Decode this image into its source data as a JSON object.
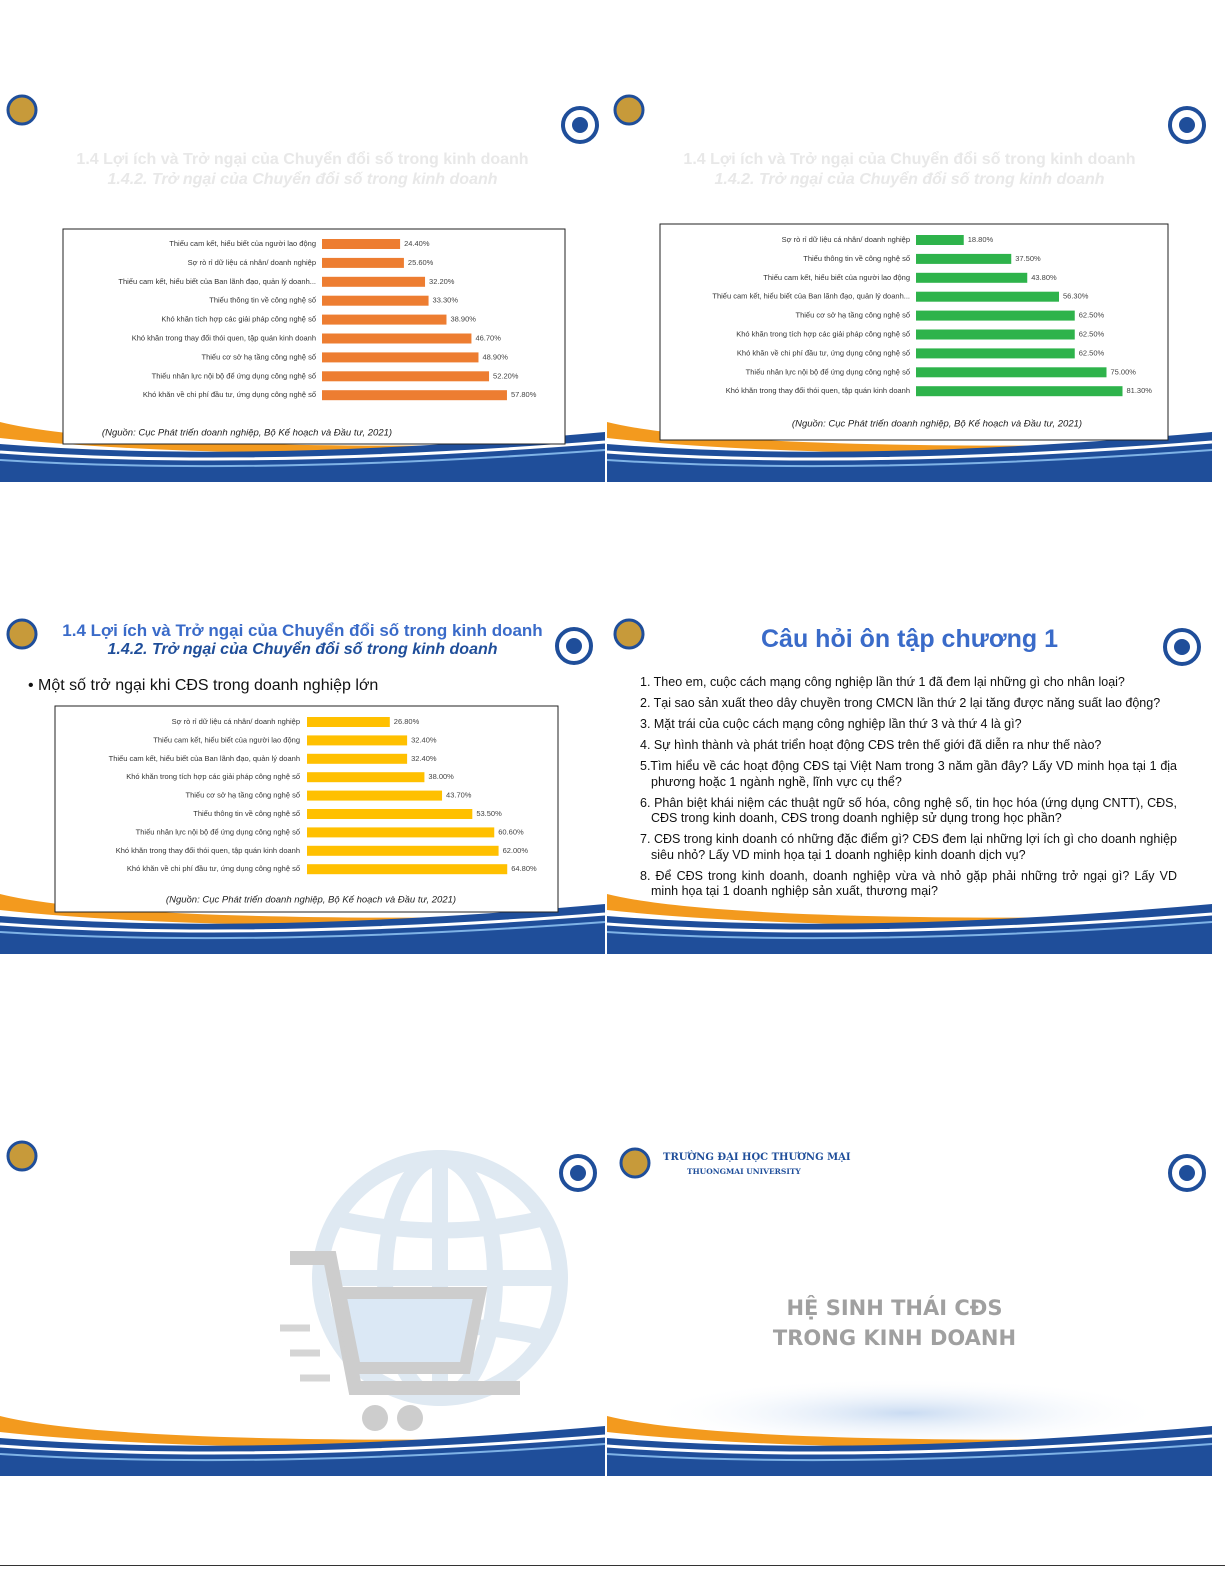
{
  "slides": [
    {
      "title": "1.4 Lợi ích và Trở ngại của Chuyển đổi số trong kinh doanh",
      "subtitle": "1.4.2. Trở ngại của Chuyển đổi số trong kinh doanh",
      "chart": {
        "type": "bar",
        "color": "#ed7d31",
        "categories": [
          "Thiếu cam kết, hiểu biết của người lao động",
          "Sợ rò rỉ dữ liệu cá nhân/ doanh nghiệp",
          "Thiếu cam kết, hiểu biết của Ban lãnh đạo, quản lý doanh...",
          "Thiếu thông tin về công nghệ số",
          "Khó khăn tích hợp các giải pháp công nghệ số",
          "Khó khăn trong thay đổi thói quen, tập quán kinh doanh",
          "Thiếu cơ sở hạ tầng công nghệ số",
          "Thiếu nhân lực nội bộ để ứng dụng công nghệ số",
          "Khó khăn về chi phí đầu tư, ứng dụng công nghệ số"
        ],
        "values": [
          24.4,
          25.6,
          32.2,
          33.3,
          38.9,
          46.7,
          48.9,
          52.2,
          57.8
        ],
        "value_labels": [
          "24.40%",
          "25.60%",
          "32.20%",
          "33.30%",
          "38.90%",
          "46.70%",
          "48.90%",
          "52.20%",
          "57.80%"
        ],
        "source": "(Nguồn: Cục Phát triển doanh nghiệp, Bộ Kế hoạch và Đầu tư, 2021)"
      }
    },
    {
      "title": "1.4 Lợi ích và Trở ngại của Chuyển đổi số trong kinh doanh",
      "subtitle": "1.4.2. Trở ngại của Chuyển đổi số trong kinh doanh",
      "chart": {
        "type": "bar",
        "color": "#2eb34b",
        "categories": [
          "Sợ rò rỉ dữ liệu cá nhân/ doanh nghiệp",
          "Thiếu thông tin về công nghệ số",
          "Thiếu cam kết, hiểu biết của người lao động",
          "Thiếu cam kết, hiểu biết của Ban lãnh đạo, quản lý doanh...",
          "Thiếu cơ sở hạ tầng công nghệ số",
          "Khó khăn trong tích hợp các giải pháp công nghệ số",
          "Khó khăn về chi phí đầu tư, ứng dụng công nghệ số",
          "Thiếu nhân lực nội bộ để ứng dụng công nghệ số",
          "Khó khăn trong thay đổi thói quen, tập quán kinh doanh"
        ],
        "values": [
          18.8,
          37.5,
          43.8,
          56.3,
          62.5,
          62.5,
          62.5,
          75.0,
          81.3
        ],
        "value_labels": [
          "18.80%",
          "37.50%",
          "43.80%",
          "56.30%",
          "62.50%",
          "62.50%",
          "62.50%",
          "75.00%",
          "81.30%"
        ],
        "source": "(Nguồn: Cục Phát triển doanh nghiệp, Bộ Kế hoạch và Đầu tư, 2021)"
      }
    },
    {
      "title": "1.4 Lợi ích và Trở ngại của Chuyển đổi số trong kinh doanh",
      "subtitle": "1.4.2. Trở ngại của Chuyển đổi số trong kinh doanh",
      "bullet": "Một số trở ngại khi CĐS trong doanh nghiệp lớn",
      "chart": {
        "type": "bar",
        "color": "#ffc000",
        "categories": [
          "Sợ rò rỉ dữ liệu cá nhân/ doanh nghiệp",
          "Thiếu cam kết, hiểu biết của người lao động",
          "Thiếu cam kết, hiểu biết của Ban lãnh đạo, quản lý doanh",
          "Khó khăn trong tích hợp các giải pháp công nghệ số",
          "Thiếu cơ sở hạ tầng công nghệ số",
          "Thiếu thông tin về công nghệ số",
          "Thiếu nhân lực nội bộ để ứng dụng công nghệ số",
          "Khó khăn trong thay đổi thói quen, tập quán kinh doanh",
          "Khó khăn về chi phí đầu tư, ứng dụng công nghệ số"
        ],
        "values": [
          26.8,
          32.4,
          32.4,
          38.0,
          43.7,
          53.5,
          60.6,
          62.0,
          64.8
        ],
        "value_labels": [
          "26.80%",
          "32.40%",
          "32.40%",
          "38.00%",
          "43.70%",
          "53.50%",
          "60.60%",
          "62.00%",
          "64.80%"
        ],
        "source": "(Nguồn: Cục Phát triển doanh nghiệp, Bộ Kế hoạch và Đầu tư, 2021)"
      }
    },
    {
      "title": "Câu hỏi ôn tập chương 1",
      "questions": [
        "1. Theo em, cuộc cách mạng công nghiệp lần thứ 1 đã đem lại những gì cho nhân loại?",
        "2. Tại sao sản xuất theo dây chuyền trong CMCN lần thứ 2 lại tăng được năng suất lao động?",
        "3. Mặt trái của cuộc cách mạng công nghiệp lần thứ 3 và thứ 4 là gì?",
        "4. Sự hình thành và phát triển hoạt động CĐS trên thế giới đã diễn ra như thế nào?",
        "5.Tìm hiểu về các hoạt động CĐS tại Việt Nam trong 3 năm gần đây? Lấy VD minh họa tại 1 địa phương hoặc 1 ngành nghề, lĩnh vực cụ thể?",
        "6. Phân biệt khái niệm các thuật ngữ số hóa, công nghệ số, tin học hóa (ứng dụng CNTT), CĐS, CĐS trong kinh doanh, CĐS trong doanh nghiệp sử dụng trong học phần?",
        "7. CĐS trong kinh doanh có những đặc điểm gì? CĐS đem lại những lợi ích gì cho doanh nghiệp siêu nhỏ? Lấy VD minh họa tại 1 doanh nghiệp kinh doanh dịch vụ?",
        "8. Để CĐS trong kinh doanh, doanh nghiệp vừa và nhỏ gặp phải những trở ngại gì? Lấy VD minh họa tại 1 doanh nghiệp sản xuất, thương mại?"
      ]
    },
    {},
    {
      "university": "TRƯỜNG ĐẠI HỌC THƯƠNG MẠI",
      "university_en": "THUONGMAI UNIVERSITY",
      "title_lines": [
        "HỆ SINH THÁI CĐS",
        "TRONG KINH DOANH"
      ]
    }
  ]
}
